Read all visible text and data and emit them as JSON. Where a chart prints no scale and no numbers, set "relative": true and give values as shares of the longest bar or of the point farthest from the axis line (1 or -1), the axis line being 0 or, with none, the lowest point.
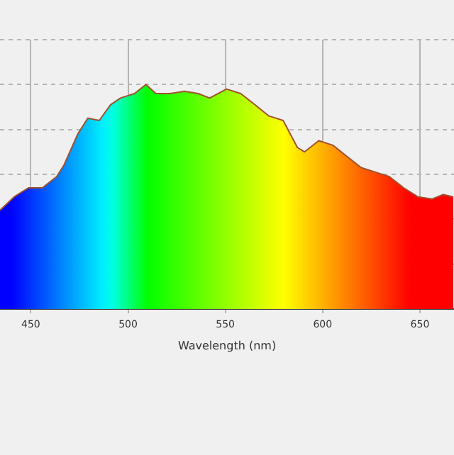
{
  "chart_data": {
    "type": "area",
    "xlabel": "Wavelength (nm)",
    "relative": true,
    "grid": true,
    "legend": false,
    "marker": "none",
    "xlim": [
      434.2,
      667.5
    ],
    "xticks": [
      450,
      500,
      550,
      600,
      650
    ],
    "x": [
      434.2,
      441.5,
      448.8,
      456.0,
      463.3,
      467.0,
      474.2,
      479.3,
      485.2,
      491.0,
      496.1,
      503.3,
      509.2,
      514.3,
      521.5,
      528.8,
      536.1,
      541.9,
      550.6,
      557.9,
      565.2,
      572.4,
      579.7,
      587.0,
      590.7,
      598.0,
      605.2,
      612.5,
      619.8,
      627.1,
      634.3,
      641.6,
      648.9,
      656.2,
      662.0,
      667.1
    ],
    "series": [
      {
        "color": "#a0522d",
        "values": [
          0.44,
          0.5,
          0.54,
          0.54,
          0.59,
          0.64,
          0.78,
          0.85,
          0.84,
          0.91,
          0.94,
          0.96,
          1.0,
          0.96,
          0.96,
          0.97,
          0.96,
          0.94,
          0.98,
          0.96,
          0.91,
          0.86,
          0.84,
          0.72,
          0.7,
          0.75,
          0.73,
          0.68,
          0.63,
          0.61,
          0.59,
          0.54,
          0.5,
          0.49,
          0.51,
          0.5
        ]
      }
    ]
  }
}
